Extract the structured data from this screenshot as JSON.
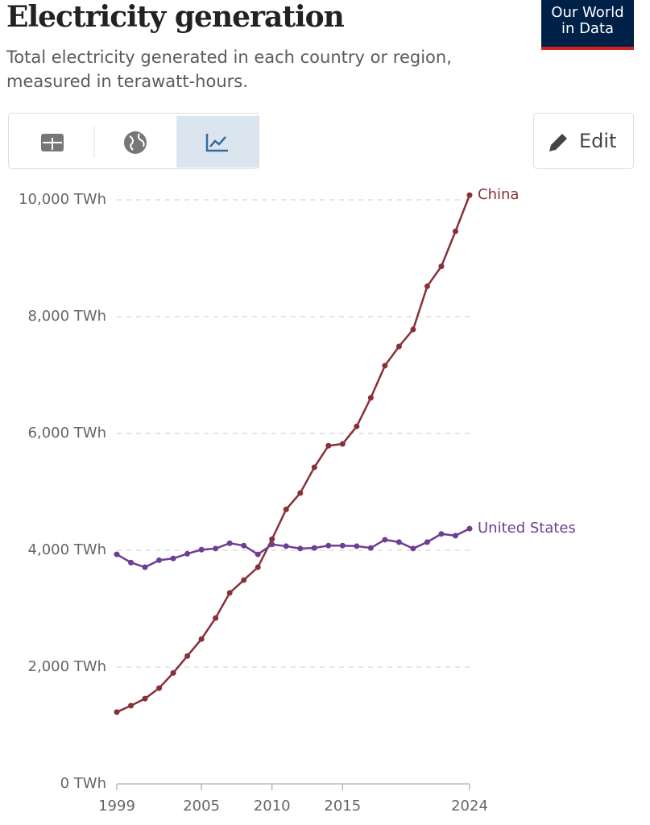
{
  "logo": "Our World in Data",
  "edit_button": "Edit",
  "chart_data": {
    "type": "line",
    "title": "Electricity generation",
    "subtitle": "Total electricity generated in each country or region, measured in terawatt-hours.",
    "x": [
      1999,
      2000,
      2001,
      2002,
      2003,
      2004,
      2005,
      2006,
      2007,
      2008,
      2009,
      2010,
      2011,
      2012,
      2013,
      2014,
      2015,
      2016,
      2017,
      2018,
      2019,
      2020,
      2021,
      2022,
      2023,
      2024
    ],
    "series": [
      {
        "name": "China",
        "color": "#883039",
        "values": [
          1230,
          1340,
          1460,
          1640,
          1900,
          2190,
          2480,
          2840,
          3270,
          3490,
          3710,
          4190,
          4700,
          4980,
          5420,
          5790,
          5820,
          6120,
          6610,
          7160,
          7490,
          7780,
          8520,
          8860,
          9460,
          10080
        ]
      },
      {
        "name": "United States",
        "color": "#6d3e91",
        "values": [
          3930,
          3790,
          3710,
          3830,
          3860,
          3940,
          4010,
          4030,
          4120,
          4080,
          3930,
          4100,
          4070,
          4030,
          4040,
          4080,
          4080,
          4070,
          4040,
          4180,
          4140,
          4030,
          4140,
          4280,
          4250,
          4370
        ]
      }
    ],
    "xlim": [
      1999,
      2024
    ],
    "xticks": [
      1999,
      2005,
      2010,
      2015,
      2024
    ],
    "ylim": [
      0,
      10000
    ],
    "yticks": [
      {
        "value": 0,
        "label": "0 TWh"
      },
      {
        "value": 2000,
        "label": "2,000 TWh"
      },
      {
        "value": 4000,
        "label": "4,000 TWh"
      },
      {
        "value": 6000,
        "label": "6,000 TWh"
      },
      {
        "value": 8000,
        "label": "8,000 TWh"
      },
      {
        "value": 10000,
        "label": "10,000 TWh"
      }
    ],
    "grid": true
  }
}
